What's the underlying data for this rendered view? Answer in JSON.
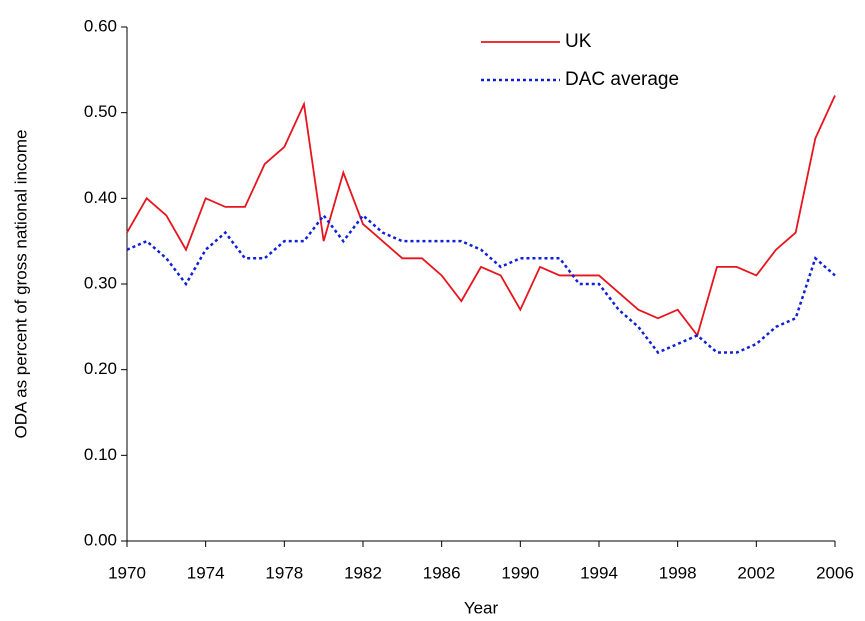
{
  "chart_data": {
    "type": "line",
    "xlabel": "Year",
    "ylabel": "ODA as percent of gross national income",
    "x": [
      1970,
      1971,
      1972,
      1973,
      1974,
      1975,
      1976,
      1977,
      1978,
      1979,
      1980,
      1981,
      1982,
      1983,
      1984,
      1985,
      1986,
      1987,
      1988,
      1989,
      1990,
      1991,
      1992,
      1993,
      1994,
      1995,
      1996,
      1997,
      1998,
      1999,
      2000,
      2001,
      2002,
      2003,
      2004,
      2005,
      2006
    ],
    "series": [
      {
        "name": "UK",
        "color": "#e8141e",
        "dash": "solid",
        "values": [
          0.36,
          0.4,
          0.38,
          0.34,
          0.4,
          0.39,
          0.39,
          0.44,
          0.46,
          0.51,
          0.35,
          0.43,
          0.37,
          0.35,
          0.33,
          0.33,
          0.31,
          0.28,
          0.32,
          0.31,
          0.27,
          0.32,
          0.31,
          0.31,
          0.31,
          0.29,
          0.27,
          0.26,
          0.27,
          0.24,
          0.32,
          0.32,
          0.31,
          0.34,
          0.36,
          0.47,
          0.52
        ]
      },
      {
        "name": "DAC average",
        "color": "#1020d8",
        "dash": "dotted",
        "values": [
          0.34,
          0.35,
          0.33,
          0.3,
          0.34,
          0.36,
          0.33,
          0.33,
          0.35,
          0.35,
          0.38,
          0.35,
          0.38,
          0.36,
          0.35,
          0.35,
          0.35,
          0.35,
          0.34,
          0.32,
          0.33,
          0.33,
          0.33,
          0.3,
          0.3,
          0.27,
          0.25,
          0.22,
          0.23,
          0.24,
          0.22,
          0.22,
          0.23,
          0.25,
          0.26,
          0.33,
          0.31
        ]
      }
    ],
    "xlim": [
      1970,
      2006
    ],
    "xticks": [
      1970,
      1974,
      1978,
      1982,
      1986,
      1990,
      1994,
      1998,
      2002,
      2006
    ],
    "ylim": [
      0,
      0.6
    ],
    "yticks": [
      {
        "value": 0,
        "label": "0.00"
      },
      {
        "value": 0.1,
        "label": "0.10"
      },
      {
        "value": 0.2,
        "label": "0.20"
      },
      {
        "value": 0.3,
        "label": "0.30"
      },
      {
        "value": 0.4,
        "label": "0.40"
      },
      {
        "value": 0.5,
        "label": "0.50"
      },
      {
        "value": 0.6,
        "label": "0.60"
      }
    ],
    "grid": false
  }
}
